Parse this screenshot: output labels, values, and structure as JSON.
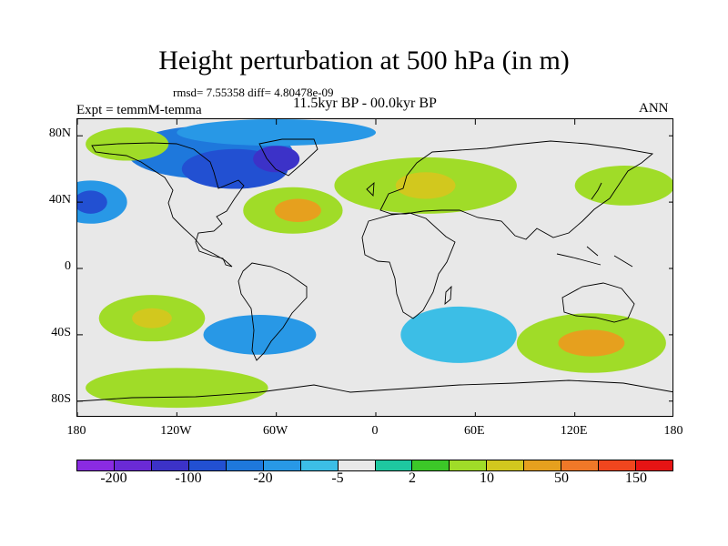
{
  "title": "Height perturbation at 500 hPa (in m)",
  "stats": "rmsd= 7.55358 diff= 4.80478e-09",
  "expt": "Expt = temmM-temma",
  "period": "11.5kyr BP - 00.0kyr BP",
  "season": "ANN",
  "lat_labels": [
    "80N",
    "40N",
    "0",
    "40S",
    "80S"
  ],
  "lat_values": [
    80,
    40,
    0,
    -40,
    -80
  ],
  "lon_labels": [
    "180",
    "120W",
    "60W",
    "0",
    "60E",
    "120E",
    "180"
  ],
  "lon_values": [
    -180,
    -120,
    -60,
    0,
    60,
    120,
    180
  ],
  "colorbar": {
    "colors": [
      "#8a2be2",
      "#6a2ad6",
      "#3c32c8",
      "#2250d2",
      "#1e78dc",
      "#2898e6",
      "#3cbee6",
      "#e8e8e8",
      "#1ec8a0",
      "#3cc828",
      "#a0dc28",
      "#d2c81e",
      "#e6a01e",
      "#f07828",
      "#f0461e",
      "#e61414"
    ],
    "labels": [
      "-200",
      "-100",
      "-20",
      "-5",
      "2",
      "10",
      "50",
      "150"
    ]
  },
  "field": {
    "background": "#e8e8e8",
    "anomalies": [
      {
        "lon": -100,
        "lat": 70,
        "rx": 50,
        "ry": 16,
        "color": "#1e78dc"
      },
      {
        "lon": -85,
        "lat": 60,
        "rx": 32,
        "ry": 12,
        "color": "#2250d2"
      },
      {
        "lon": -60,
        "lat": 66,
        "rx": 14,
        "ry": 8,
        "color": "#3c32c8"
      },
      {
        "lon": -60,
        "lat": 82,
        "rx": 60,
        "ry": 8,
        "color": "#2898e6"
      },
      {
        "lon": -150,
        "lat": 75,
        "rx": 25,
        "ry": 10,
        "color": "#a0dc28"
      },
      {
        "lon": -172,
        "lat": 40,
        "rx": 22,
        "ry": 13,
        "color": "#2898e6"
      },
      {
        "lon": -172,
        "lat": 40,
        "rx": 10,
        "ry": 7,
        "color": "#2250d2"
      },
      {
        "lon": -50,
        "lat": 35,
        "rx": 30,
        "ry": 14,
        "color": "#a0dc28"
      },
      {
        "lon": -47,
        "lat": 35,
        "rx": 14,
        "ry": 7,
        "color": "#e6a01e"
      },
      {
        "lon": 30,
        "lat": 50,
        "rx": 55,
        "ry": 17,
        "color": "#a0dc28"
      },
      {
        "lon": 30,
        "lat": 50,
        "rx": 18,
        "ry": 8,
        "color": "#d2c81e"
      },
      {
        "lon": 150,
        "lat": 50,
        "rx": 30,
        "ry": 12,
        "color": "#a0dc28"
      },
      {
        "lon": -135,
        "lat": -30,
        "rx": 32,
        "ry": 14,
        "color": "#a0dc28"
      },
      {
        "lon": -135,
        "lat": -30,
        "rx": 12,
        "ry": 6,
        "color": "#d2c81e"
      },
      {
        "lon": -70,
        "lat": -40,
        "rx": 34,
        "ry": 12,
        "color": "#2898e6"
      },
      {
        "lon": 50,
        "lat": -40,
        "rx": 35,
        "ry": 17,
        "color": "#3cbee6"
      },
      {
        "lon": 130,
        "lat": -45,
        "rx": 45,
        "ry": 18,
        "color": "#a0dc28"
      },
      {
        "lon": 130,
        "lat": -45,
        "rx": 20,
        "ry": 8,
        "color": "#e6a01e"
      },
      {
        "lon": -120,
        "lat": -72,
        "rx": 55,
        "ry": 12,
        "color": "#a0dc28"
      }
    ]
  }
}
